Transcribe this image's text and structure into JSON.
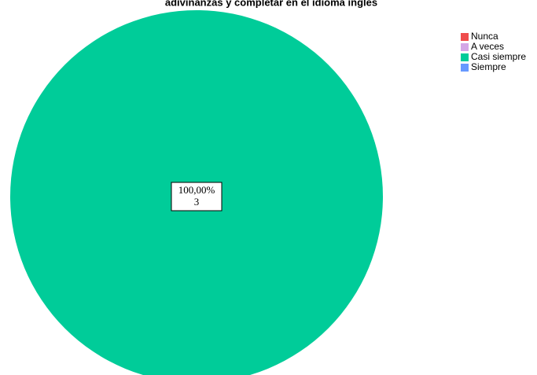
{
  "chart_data": {
    "type": "pie",
    "title": "adivinanzas y completar en el idioma inglés",
    "categories": [
      "Nunca",
      "A veces",
      "Casi siempre",
      "Siempre"
    ],
    "series": [
      {
        "name": "Casi siempre",
        "colors": [
          "#ef4c4c",
          "#d4a6e6",
          "#00cc99",
          "#6699ff"
        ],
        "values": [
          0,
          0,
          3,
          0
        ],
        "percentages": [
          0,
          0,
          100,
          0
        ],
        "percentage_labels": [
          null,
          null,
          "100,00%",
          null
        ]
      }
    ],
    "legend": "top-right"
  }
}
